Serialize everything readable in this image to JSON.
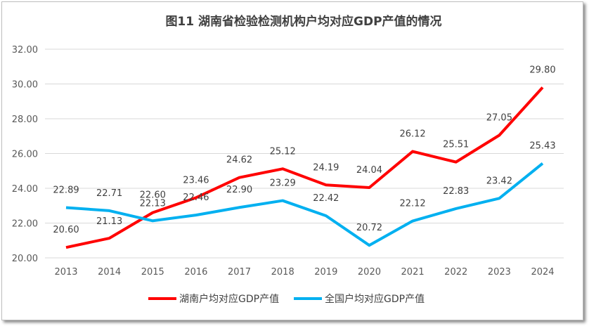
{
  "chart_data": {
    "type": "line",
    "title": "图11  湖南省检验检测机构户均对应GDP产值的情况",
    "xlabel": "",
    "ylabel": "",
    "categories": [
      "2013",
      "2014",
      "2015",
      "2016",
      "2017",
      "2018",
      "2019",
      "2020",
      "2021",
      "2022",
      "2023",
      "2024"
    ],
    "ylim": [
      20,
      32
    ],
    "yticks": [
      "20.00",
      "22.00",
      "24.00",
      "26.00",
      "28.00",
      "30.00",
      "32.00"
    ],
    "grid": true,
    "legend": "bottom",
    "series": [
      {
        "name": "湖南户均对应GDP产值",
        "color": "#ff0000",
        "values": [
          20.6,
          21.13,
          22.6,
          23.46,
          24.62,
          25.12,
          24.19,
          24.04,
          26.12,
          25.51,
          27.05,
          29.8
        ]
      },
      {
        "name": "全国户均对应GDP产值",
        "color": "#00b0f0",
        "values": [
          22.89,
          22.71,
          22.13,
          22.46,
          22.9,
          23.29,
          22.42,
          20.72,
          22.12,
          22.83,
          23.42,
          25.43
        ]
      }
    ]
  }
}
